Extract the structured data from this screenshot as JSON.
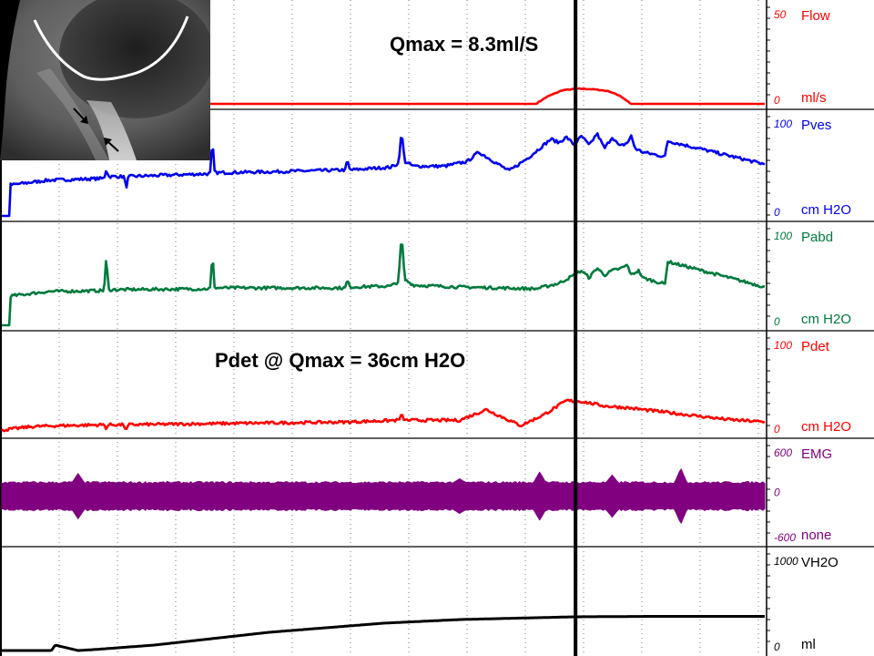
{
  "chart_data": {
    "type": "line",
    "annotations": {
      "qmax": "Qmax = 8.3ml/S",
      "pdet_at_qmax": "Pdet @ Qmax = 36cm H2O"
    },
    "cursor_x": 0.752,
    "channels": [
      {
        "id": "flow",
        "name": "Flow",
        "unit": "ml/s",
        "top": "50",
        "bottom": "0",
        "min": 0,
        "max": 50,
        "color": "#ff0000",
        "x": [
          0,
          0.7,
          0.715,
          0.735,
          0.755,
          0.775,
          0.795,
          0.81,
          0.825,
          1.0
        ],
        "y": [
          0,
          0,
          4,
          7.5,
          8.3,
          8.0,
          7.0,
          4.5,
          0,
          0
        ]
      },
      {
        "id": "pves",
        "name": "Pves",
        "unit": "cm H2O",
        "top": "100",
        "bottom": "0",
        "min": 0,
        "max": 100,
        "color": "#0000ee",
        "x": [
          0,
          0.01,
          0.011,
          0.06,
          0.134,
          0.137,
          0.14,
          0.16,
          0.163,
          0.166,
          0.2,
          0.273,
          0.276,
          0.279,
          0.35,
          0.45,
          0.453,
          0.456,
          0.51,
          0.52,
          0.524,
          0.528,
          0.54,
          0.58,
          0.61,
          0.625,
          0.645,
          0.665,
          0.69,
          0.72,
          0.73,
          0.74,
          0.75,
          0.76,
          0.77,
          0.78,
          0.79,
          0.8,
          0.81,
          0.82,
          0.825,
          0.83,
          0.835,
          0.84,
          0.87,
          0.872,
          1.0
        ],
        "y": [
          0,
          0,
          33,
          38,
          40,
          50,
          42,
          42,
          30,
          42,
          43,
          45,
          80,
          46,
          47,
          49,
          60,
          49,
          52,
          56,
          90,
          58,
          53,
          53,
          58,
          68,
          58,
          48,
          62,
          82,
          78,
          84,
          76,
          85,
          75,
          88,
          72,
          84,
          74,
          78,
          85,
          72,
          70,
          68,
          63,
          80,
          55
        ]
      },
      {
        "id": "pabd",
        "name": "Pabd",
        "unit": "cm H2O",
        "top": "100",
        "bottom": "0",
        "min": 0,
        "max": 100,
        "color": "#007a3d",
        "x": [
          0,
          0.01,
          0.011,
          0.06,
          0.134,
          0.137,
          0.14,
          0.273,
          0.276,
          0.279,
          0.35,
          0.45,
          0.453,
          0.456,
          0.51,
          0.52,
          0.524,
          0.528,
          0.54,
          0.6,
          0.7,
          0.73,
          0.75,
          0.76,
          0.77,
          0.78,
          0.79,
          0.8,
          0.81,
          0.82,
          0.825,
          0.83,
          0.835,
          0.84,
          0.87,
          0.872,
          1.0
        ],
        "y": [
          0,
          0,
          32,
          37,
          38,
          75,
          39,
          40,
          78,
          41,
          41,
          41,
          50,
          42,
          43,
          48,
          100,
          50,
          44,
          42,
          40,
          46,
          55,
          60,
          52,
          63,
          55,
          60,
          62,
          66,
          55,
          58,
          60,
          52,
          45,
          70,
          42
        ]
      },
      {
        "id": "pdet",
        "name": "Pdet",
        "unit": "cm H2O",
        "top": "100",
        "bottom": "0",
        "min": 0,
        "max": 100,
        "color": "#ff0000",
        "x": [
          0,
          0.04,
          0.08,
          0.134,
          0.137,
          0.14,
          0.16,
          0.163,
          0.166,
          0.25,
          0.35,
          0.45,
          0.52,
          0.524,
          0.528,
          0.6,
          0.635,
          0.655,
          0.68,
          0.71,
          0.74,
          0.76,
          0.79,
          0.82,
          0.86,
          0.9,
          0.95,
          1.0
        ],
        "y": [
          3,
          7,
          8,
          9,
          5,
          9,
          9,
          2,
          9,
          10,
          11,
          12,
          14,
          20,
          14,
          14,
          26,
          18,
          8,
          20,
          36,
          35,
          30,
          28,
          24,
          20,
          15,
          12
        ]
      },
      {
        "id": "emg",
        "name": "EMG",
        "unit": "none",
        "top": "600",
        "bottom": "-600",
        "zero": "0",
        "min": -600,
        "max": 600,
        "color": "#800080",
        "band": 180,
        "spikes": [
          {
            "x": 0.1,
            "amp": 300
          },
          {
            "x": 0.6,
            "amp": 230
          },
          {
            "x": 0.705,
            "amp": 320
          },
          {
            "x": 0.8,
            "amp": 280
          },
          {
            "x": 0.89,
            "amp": 370
          }
        ]
      },
      {
        "id": "vh2o",
        "name": "VH2O",
        "unit": "ml",
        "top": "1000",
        "bottom": "0",
        "min": 0,
        "max": 1000,
        "color": "#000000",
        "x": [
          0,
          0.065,
          0.07,
          0.08,
          0.1,
          0.12,
          0.2,
          0.35,
          0.5,
          0.6,
          0.7,
          0.75,
          0.85,
          1.0
        ],
        "y": [
          0,
          0,
          60,
          40,
          0,
          10,
          60,
          200,
          300,
          340,
          360,
          370,
          375,
          375
        ]
      }
    ]
  }
}
